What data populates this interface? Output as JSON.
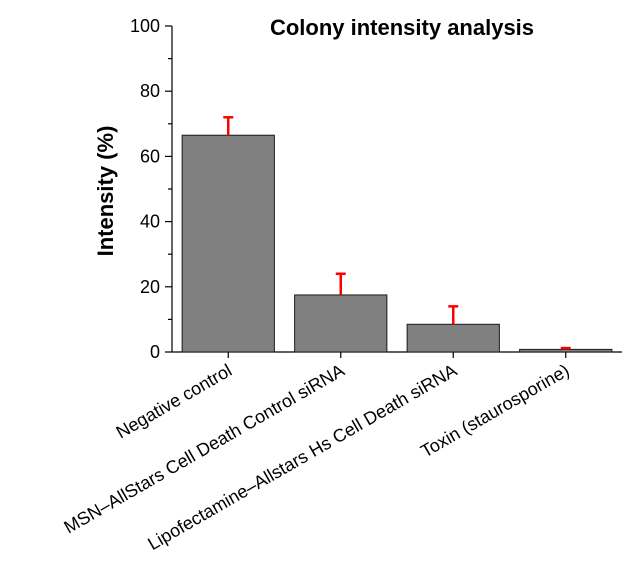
{
  "chart_data": {
    "type": "bar",
    "title": "Colony intensity analysis",
    "xlabel": "",
    "ylabel": "Intensity (%)",
    "ylim": [
      0,
      100
    ],
    "yticks": [
      0,
      20,
      40,
      60,
      80,
      100
    ],
    "grid": false,
    "categories": [
      "Negative control",
      "MSN–AllStars Cell Death Control siRNA",
      "Lipofectamine–Allstars Hs Cell Death siRNA",
      "Toxin (staurosporine)"
    ],
    "values": [
      66.5,
      17.5,
      8.5,
      0.8
    ],
    "error_upper": [
      5.5,
      6.5,
      5.5,
      0.4
    ],
    "colors": {
      "bar_fill": "#808080",
      "bar_stroke": "#1a1a1a",
      "error_bar": "#ff0000",
      "axis": "#000000"
    }
  }
}
